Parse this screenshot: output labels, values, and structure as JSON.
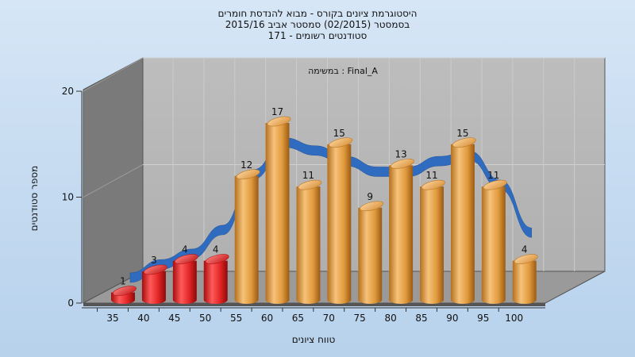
{
  "chart_data": {
    "type": "bar",
    "title_lines": [
      "היסטוגרמת ציונים בקורס - מבוא להנדסת חומרים",
      "בסמסטר  (02/2015)  סמסטר אביב 2015/16",
      "סטודנטים רשומים - 171"
    ],
    "inner_label": "במשימה : Final_A",
    "xlabel": "טווח ציונים",
    "ylabel": "מספר סטודנטים",
    "categories": [
      "35",
      "40",
      "45",
      "50",
      "55",
      "60",
      "65",
      "70",
      "75",
      "80",
      "85",
      "90",
      "95",
      "100"
    ],
    "bar_values": [
      1,
      3,
      4,
      4,
      12,
      17,
      11,
      15,
      9,
      13,
      11,
      15,
      11,
      4
    ],
    "bar_colors": [
      "#e02a2a",
      "#e02a2a",
      "#e02a2a",
      "#e02a2a",
      "#e3a24a",
      "#e3a24a",
      "#e3a24a",
      "#e3a24a",
      "#e3a24a",
      "#e3a24a",
      "#e3a24a",
      "#e3a24a",
      "#e3a24a",
      "#e3a24a"
    ],
    "yticks": [
      0,
      10,
      20
    ],
    "ylim": [
      0,
      20
    ],
    "ribbon_color": "#2f6cc0",
    "ribbon_note": "smooth trend ribbon drawn behind the bars",
    "grid": true,
    "legend": "none"
  }
}
